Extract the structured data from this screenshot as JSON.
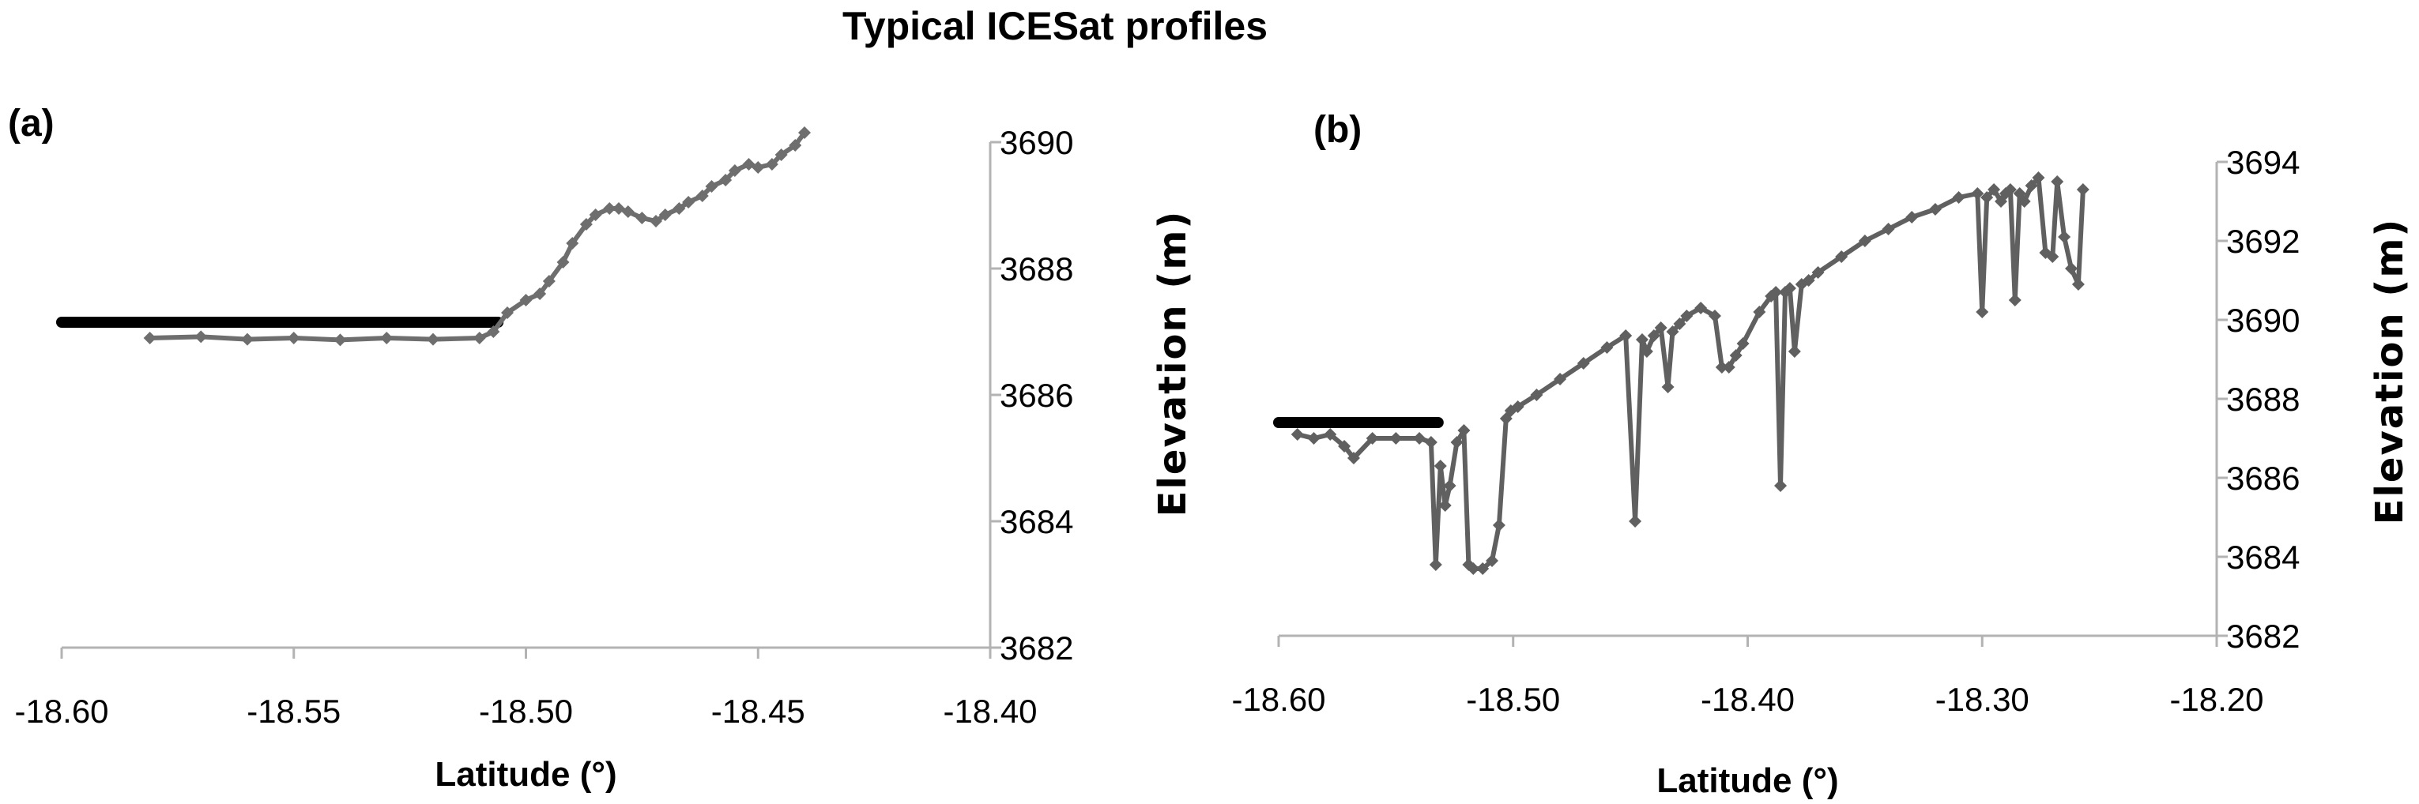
{
  "title": "Typical ICESat profiles",
  "chart_data": [
    {
      "panel": "(a)",
      "type": "line",
      "xlabel": "Latitude",
      "xlabel_unit": "(°)",
      "ylabel": "Elevation  (m)",
      "xlim": [
        -18.6,
        -18.4
      ],
      "ylim": [
        3682,
        3690
      ],
      "xticks": [
        "-18.60",
        "-18.55",
        "-18.50",
        "-18.45",
        "-18.40"
      ],
      "yticks": [
        "3690",
        "3688",
        "3686",
        "3684",
        "3682"
      ],
      "series": [
        {
          "color": "#000000",
          "marker": "none",
          "x": [
            -18.6,
            -18.506
          ],
          "y": [
            3687.15,
            3687.15
          ]
        },
        {
          "color": "#6e6e6e",
          "marker": "diamond",
          "x": [
            -18.581,
            -18.57,
            -18.56,
            -18.55,
            -18.54,
            -18.53,
            -18.52,
            -18.51,
            -18.507,
            -18.504,
            -18.5,
            -18.497,
            -18.495,
            -18.492,
            -18.49,
            -18.487,
            -18.485,
            -18.482,
            -18.48,
            -18.478,
            -18.475,
            -18.472,
            -18.47,
            -18.467,
            -18.465,
            -18.462,
            -18.46,
            -18.457,
            -18.455,
            -18.452,
            -18.45,
            -18.447,
            -18.445,
            -18.442,
            -18.44
          ],
          "y": [
            3686.9,
            3686.92,
            3686.88,
            3686.9,
            3686.87,
            3686.9,
            3686.88,
            3686.9,
            3687.0,
            3687.3,
            3687.5,
            3687.6,
            3687.8,
            3688.1,
            3688.4,
            3688.7,
            3688.85,
            3688.95,
            3688.95,
            3688.9,
            3688.8,
            3688.75,
            3688.85,
            3688.95,
            3689.05,
            3689.15,
            3689.3,
            3689.4,
            3689.55,
            3689.65,
            3689.6,
            3689.65,
            3689.8,
            3689.95,
            3690.15
          ]
        }
      ]
    },
    {
      "panel": "(b)",
      "type": "line",
      "xlabel": "Latitude",
      "xlabel_unit": "(°)",
      "ylabel": "Elevation  (m)",
      "xlim": [
        -18.6,
        -18.2
      ],
      "ylim": [
        3682,
        3694
      ],
      "xticks": [
        "-18.60",
        "-18.50",
        "-18.40",
        "-18.30",
        "-18.20"
      ],
      "yticks": [
        "3694",
        "3692",
        "3690",
        "3688",
        "3686",
        "3684",
        "3682"
      ],
      "series": [
        {
          "color": "#000000",
          "marker": "none",
          "x": [
            -18.6,
            -18.532
          ],
          "y": [
            3687.4,
            3687.4
          ]
        },
        {
          "color": "#606060",
          "marker": "diamond",
          "x": [
            -18.592,
            -18.585,
            -18.578,
            -18.572,
            -18.568,
            -18.56,
            -18.55,
            -18.54,
            -18.535,
            -18.533,
            -18.531,
            -18.529,
            -18.527,
            -18.524,
            -18.521,
            -18.519,
            -18.517,
            -18.513,
            -18.509,
            -18.506,
            -18.503,
            -18.501,
            -18.498,
            -18.49,
            -18.48,
            -18.47,
            -18.46,
            -18.452,
            -18.448,
            -18.445,
            -18.443,
            -18.44,
            -18.437,
            -18.434,
            -18.432,
            -18.429,
            -18.426,
            -18.42,
            -18.414,
            -18.411,
            -18.408,
            -18.405,
            -18.402,
            -18.395,
            -18.39,
            -18.388,
            -18.386,
            -18.384,
            -18.382,
            -18.38,
            -18.377,
            -18.374,
            -18.37,
            -18.36,
            -18.35,
            -18.34,
            -18.33,
            -18.32,
            -18.31,
            -18.302,
            -18.3,
            -18.298,
            -18.295,
            -18.292,
            -18.29,
            -18.288,
            -18.286,
            -18.284,
            -18.282,
            -18.279,
            -18.276,
            -18.273,
            -18.27,
            -18.268,
            -18.265,
            -18.262,
            -18.259,
            -18.257
          ],
          "y": [
            3687.1,
            3687.0,
            3687.1,
            3686.8,
            3686.5,
            3687.0,
            3687.0,
            3687.0,
            3686.9,
            3683.8,
            3686.3,
            3685.3,
            3685.8,
            3686.9,
            3687.2,
            3683.8,
            3683.7,
            3683.7,
            3683.9,
            3684.8,
            3687.5,
            3687.7,
            3687.8,
            3688.1,
            3688.5,
            3688.9,
            3689.3,
            3689.6,
            3684.9,
            3689.5,
            3689.2,
            3689.6,
            3689.8,
            3688.3,
            3689.7,
            3689.9,
            3690.1,
            3690.3,
            3690.1,
            3688.8,
            3688.8,
            3689.1,
            3689.4,
            3690.2,
            3690.6,
            3690.7,
            3685.8,
            3690.7,
            3690.8,
            3689.2,
            3690.9,
            3691.0,
            3691.2,
            3691.6,
            3692.0,
            3692.3,
            3692.6,
            3692.8,
            3693.1,
            3693.2,
            3690.2,
            3693.1,
            3693.3,
            3693.0,
            3693.2,
            3693.3,
            3690.5,
            3693.2,
            3693.0,
            3693.4,
            3693.6,
            3691.7,
            3691.6,
            3693.5,
            3692.1,
            3691.3,
            3690.9,
            3693.3
          ]
        }
      ]
    }
  ]
}
